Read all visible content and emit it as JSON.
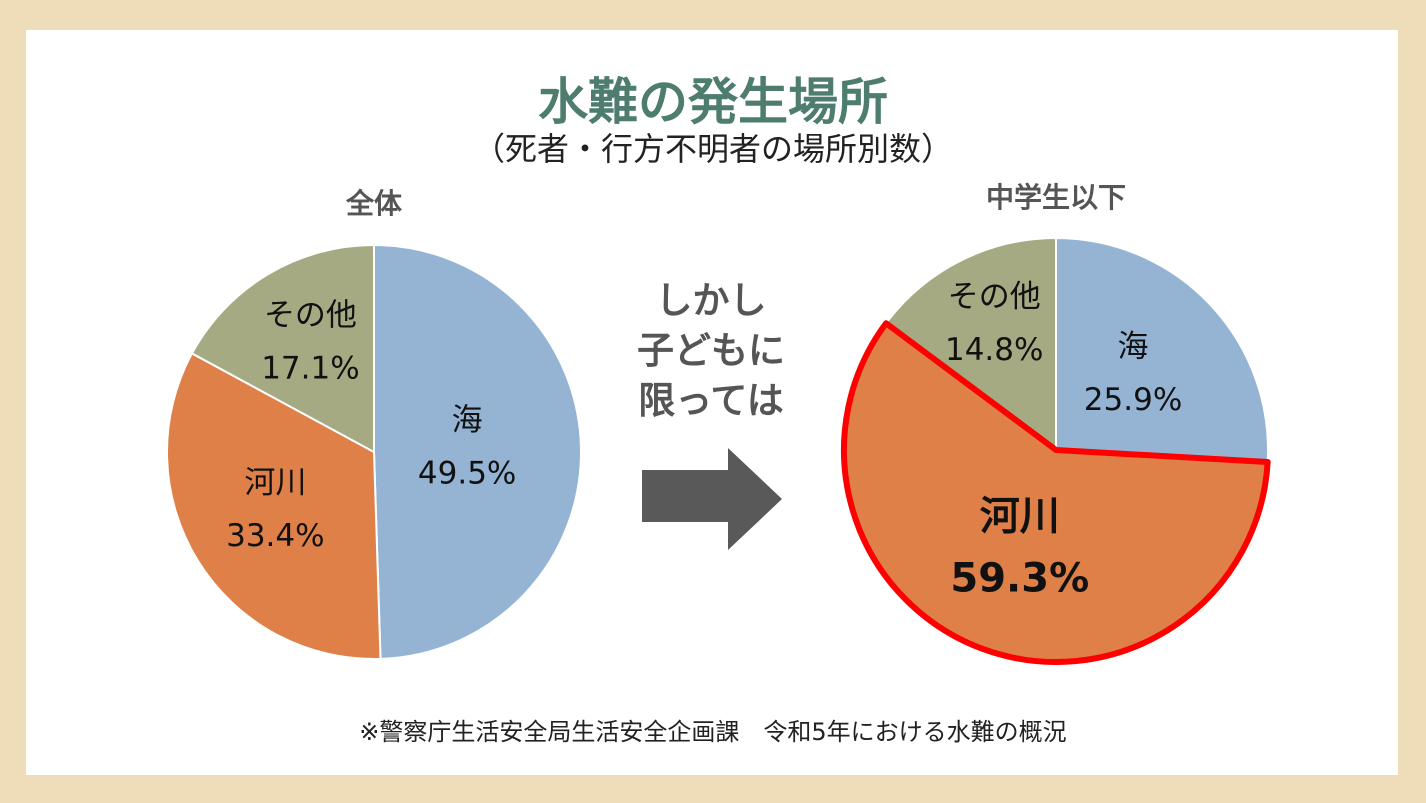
{
  "title": "水難の発生場所",
  "subtitle": "（死者・行方不明者の場所別数）",
  "middle_text": [
    "しかし",
    "子どもに",
    "限っては"
  ],
  "footnote": "※警察庁生活安全局生活安全企画課　令和5年における水難の概況",
  "colors": {
    "sea": "#95b4d3",
    "river": "#de8048",
    "other": "#a5aa82",
    "highlight": "#ff0000",
    "arrow": "#595959"
  },
  "chart_data": [
    {
      "type": "pie",
      "title": "全体",
      "categories": [
        "海",
        "河川",
        "その他"
      ],
      "values": [
        49.5,
        33.4,
        17.1
      ],
      "labels": [
        "49.5%",
        "33.4%",
        "17.1%"
      ],
      "highlight": null
    },
    {
      "type": "pie",
      "title": "中学生以下",
      "categories": [
        "海",
        "河川",
        "その他"
      ],
      "values": [
        25.9,
        59.3,
        14.8
      ],
      "labels": [
        "25.9%",
        "59.3%",
        "14.8%"
      ],
      "highlight": "河川"
    }
  ]
}
